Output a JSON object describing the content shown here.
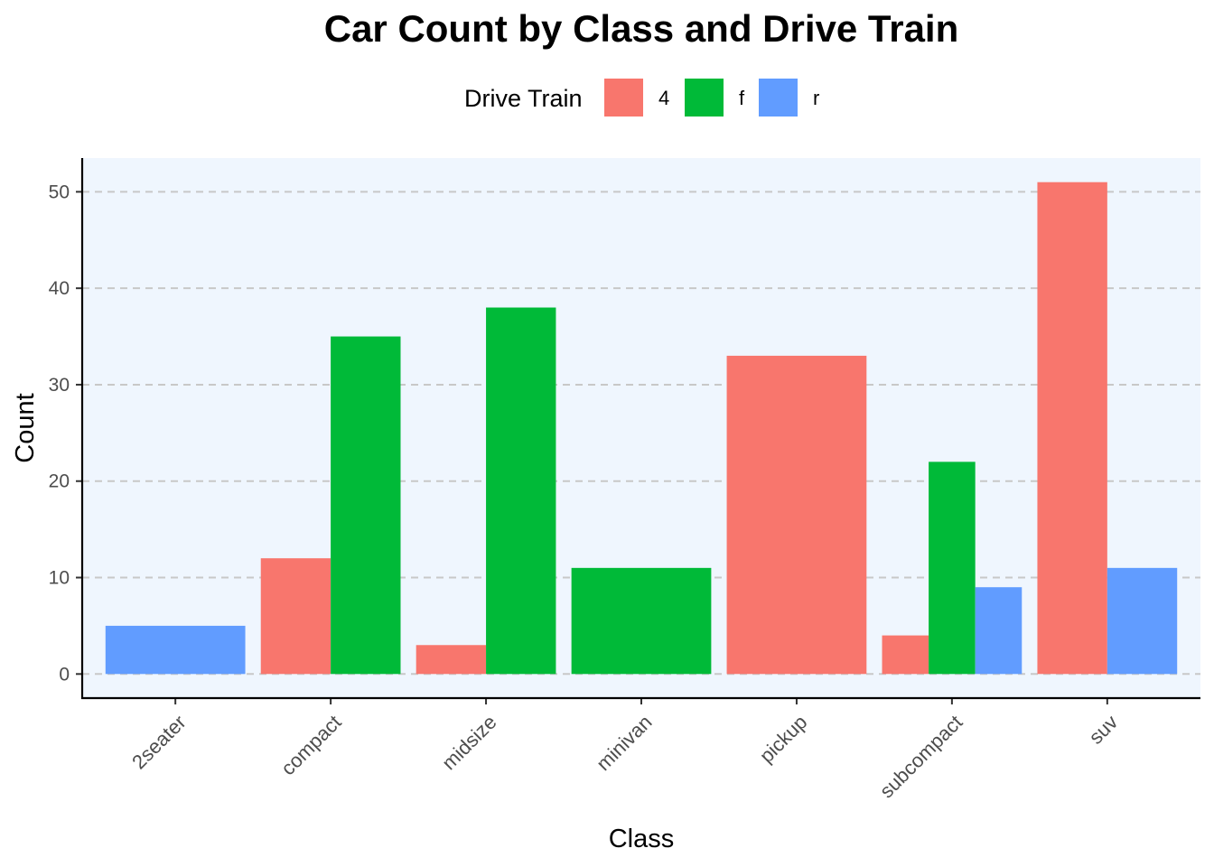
{
  "chart_data": {
    "type": "bar",
    "title": "Car Count by Class and Drive Train",
    "xlabel": "Class",
    "ylabel": "Count",
    "ylim": [
      -2.5,
      53.5
    ],
    "yticks": [
      0,
      10,
      20,
      30,
      40,
      50
    ],
    "grid": "horizontal dashed",
    "legend": {
      "title": "Drive Train",
      "position": "top"
    },
    "categories": [
      "2seater",
      "compact",
      "midsize",
      "minivan",
      "pickup",
      "subcompact",
      "suv"
    ],
    "series": [
      {
        "name": "4",
        "color": "#F8766D",
        "values": [
          null,
          12,
          3,
          null,
          33,
          4,
          51
        ]
      },
      {
        "name": "f",
        "color": "#00BA38",
        "values": [
          null,
          35,
          38,
          11,
          null,
          22,
          null
        ]
      },
      {
        "name": "r",
        "color": "#619CFF",
        "values": [
          5,
          null,
          null,
          null,
          null,
          9,
          11
        ]
      }
    ],
    "colors": {
      "panel_background": "#EFF6FE",
      "grid": "#C8C8C8"
    }
  }
}
